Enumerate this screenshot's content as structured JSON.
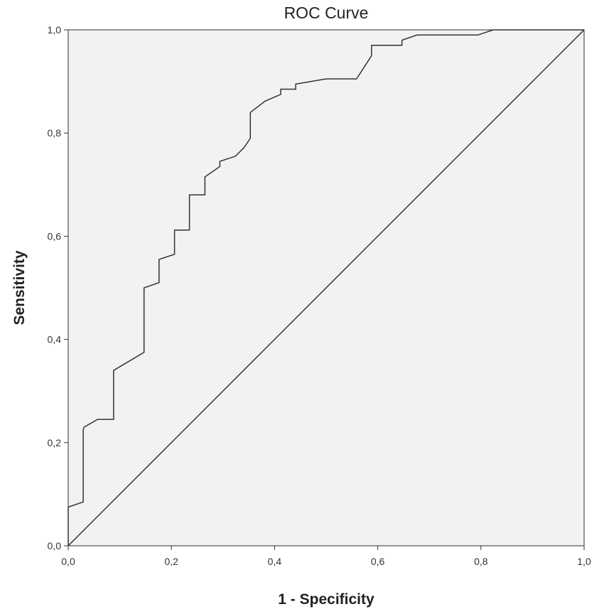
{
  "chart_data": {
    "type": "line",
    "title": "ROC Curve",
    "xlabel": "1 - Specificity",
    "ylabel": "Sensitivity",
    "xlim": [
      0,
      1
    ],
    "ylim": [
      0,
      1
    ],
    "xticks": [
      "0,0",
      "0,2",
      "0,4",
      "0,6",
      "0,8",
      "1,0"
    ],
    "yticks": [
      "0,0",
      "0,2",
      "0,4",
      "0,6",
      "0,8",
      "1,0"
    ],
    "grid": false,
    "background_color": "#f2f2f2",
    "line_color": "#333333",
    "series": [
      {
        "x": [
          0,
          0,
          0.029,
          0.029,
          0.031,
          0.057,
          0.088,
          0.088,
          0.147,
          0.147,
          0.176,
          0.176,
          0.206,
          0.206,
          0.235,
          0.235,
          0.265,
          0.265,
          0.294,
          0.294,
          0.324,
          0.341,
          0.353,
          0.353,
          0.382,
          0.412,
          0.412,
          0.441,
          0.441,
          0.471,
          0.5,
          0.559,
          0.588,
          0.588,
          0.647,
          0.647,
          0.676,
          0.794,
          0.824,
          1.0
        ],
        "y": [
          0,
          0.075,
          0.085,
          0.225,
          0.23,
          0.245,
          0.245,
          0.34,
          0.375,
          0.5,
          0.51,
          0.555,
          0.565,
          0.612,
          0.612,
          0.68,
          0.68,
          0.715,
          0.735,
          0.745,
          0.755,
          0.772,
          0.79,
          0.84,
          0.862,
          0.875,
          0.885,
          0.885,
          0.895,
          0.9,
          0.905,
          0.905,
          0.95,
          0.97,
          0.97,
          0.98,
          0.99,
          0.99,
          1.0,
          1.0
        ]
      },
      {
        "x": [
          0,
          1
        ],
        "y": [
          0,
          1
        ]
      }
    ]
  }
}
